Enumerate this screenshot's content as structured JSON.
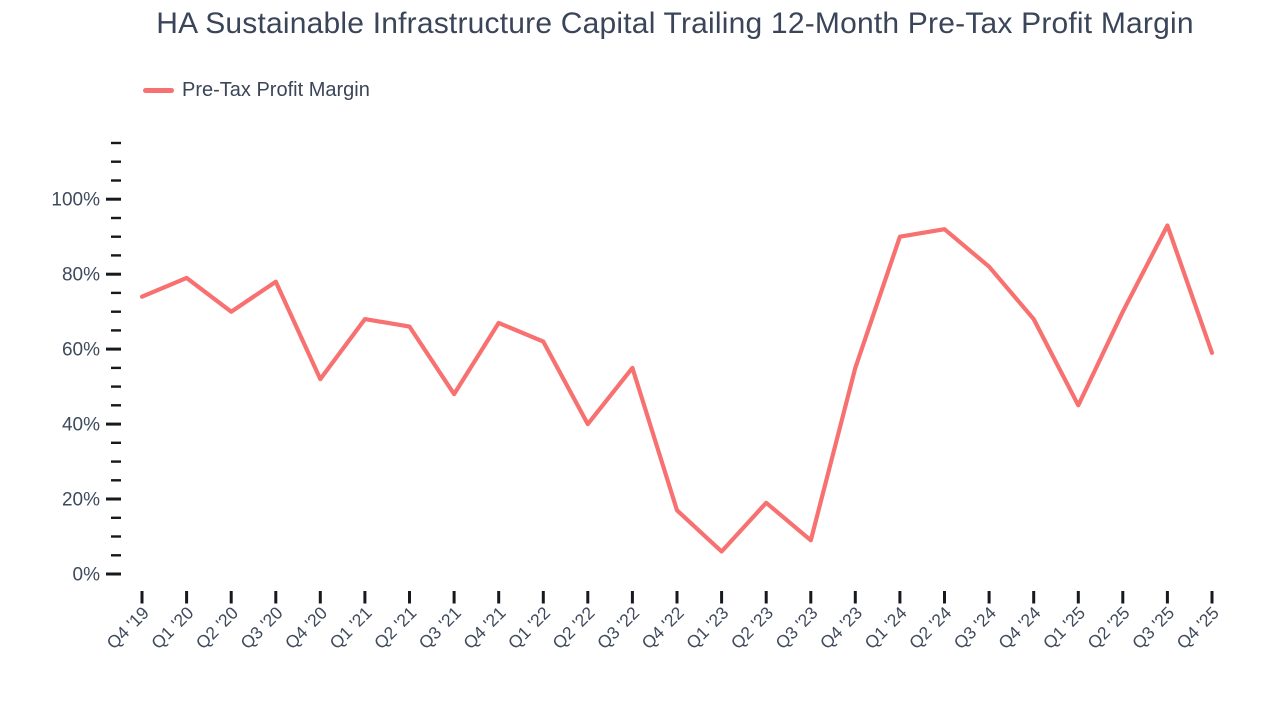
{
  "chart_data": {
    "type": "line",
    "title": "HA Sustainable Infrastructure Capital Trailing 12-Month Pre-Tax Profit Margin",
    "xlabel": "",
    "ylabel": "",
    "grid": false,
    "legend_position": "top-left",
    "categories": [
      "Q4 '19",
      "Q1 '20",
      "Q2 '20",
      "Q3 '20",
      "Q4 '20",
      "Q1 '21",
      "Q2 '21",
      "Q3 '21",
      "Q4 '21",
      "Q1 '22",
      "Q2 '22",
      "Q3 '22",
      "Q4 '22",
      "Q1 '23",
      "Q2 '23",
      "Q3 '23",
      "Q4 '23",
      "Q1 '24",
      "Q2 '24",
      "Q3 '24",
      "Q4 '24",
      "Q1 '25",
      "Q2 '25",
      "Q3 '25",
      "Q4 '25"
    ],
    "series": [
      {
        "name": "Pre-Tax Profit Margin",
        "color": "#f87171",
        "unit": "%",
        "values": [
          74,
          79,
          70,
          78,
          52,
          68,
          66,
          48,
          67,
          62,
          40,
          55,
          17,
          6,
          19,
          9,
          55,
          90,
          92,
          82,
          68,
          45,
          70,
          93,
          59
        ]
      }
    ],
    "y_axis": {
      "min": 0,
      "max": 115,
      "tick_values": [
        0,
        20,
        40,
        60,
        80,
        100
      ],
      "tick_labels": [
        "0%",
        "20%",
        "40%",
        "60%",
        "80%",
        "100%"
      ],
      "minor_tick_step": 5
    }
  },
  "colors": {
    "series": "#f87171",
    "text": "#3f4a5c",
    "title_text": "#3b4559",
    "tick": "#16191d",
    "background": "#ffffff"
  }
}
